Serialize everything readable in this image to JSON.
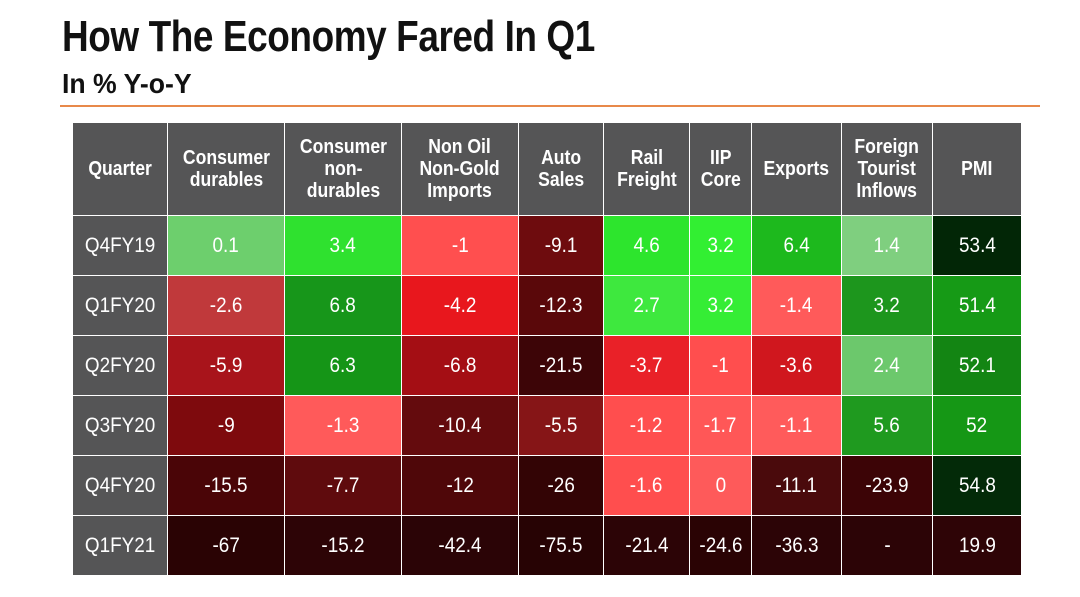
{
  "title": "How The Economy Fared In Q1",
  "subtitle": "In % Y-o-Y",
  "colors": {
    "header_bg": "#555556",
    "accent_rule": "#e8894a",
    "low": "#2b0304",
    "mid_red": "#e31d25",
    "light_red": "#ff5a5a",
    "light_green": "#7ad77a",
    "bright_green": "#25ec25",
    "dark_green": "#022a06"
  },
  "chart_data": {
    "type": "heatmap",
    "title": "How The Economy Fared In Q1",
    "subtitle": "In % Y-o-Y",
    "corner_label": "Quarter",
    "columns": [
      "Consumer\ndurables",
      "Consumer\nnon-\ndurables",
      "Non Oil\nNon-Gold\nImports",
      "Auto\nSales",
      "Rail\nFreight",
      "IIP\nCore",
      "Exports",
      "Foreign\nTourist\nInflows",
      "PMI"
    ],
    "rows": [
      "Q4FY19",
      "Q1FY20",
      "Q2FY20",
      "Q3FY20",
      "Q4FY20",
      "Q1FY21"
    ],
    "values": [
      [
        "0.1",
        "3.4",
        "-1",
        "-9.1",
        "4.6",
        "3.2",
        "6.4",
        "1.4",
        "53.4"
      ],
      [
        "-2.6",
        "6.8",
        "-4.2",
        "-12.3",
        "2.7",
        "3.2",
        "-1.4",
        "3.2",
        "51.4"
      ],
      [
        "-5.9",
        "6.3",
        "-6.8",
        "-21.5",
        "-3.7",
        "-1",
        "-3.6",
        "2.4",
        "52.1"
      ],
      [
        "-9",
        "-1.3",
        "-10.4",
        "-5.5",
        "-1.2",
        "-1.7",
        "-1.1",
        "5.6",
        "52"
      ],
      [
        "-15.5",
        "-7.7",
        "-12",
        "-26",
        "-1.6",
        "0",
        "-11.1",
        "-23.9",
        "54.8"
      ],
      [
        "-67",
        "-15.2",
        "-42.4",
        "-75.5",
        "-21.4",
        "-24.6",
        "-36.3",
        "-",
        "19.9"
      ]
    ],
    "cell_colors": [
      [
        "#6dcf6d",
        "#2fe12f",
        "#ff4f4f",
        "#6e0c0e",
        "#2de52d",
        "#32ef32",
        "#1db91d",
        "#7fcf7f",
        "#022606"
      ],
      [
        "#c0393b",
        "#17961a",
        "#e8171d",
        "#5a080a",
        "#3ee83e",
        "#35ed35",
        "#ff5a5a",
        "#1d961d",
        "#169a16"
      ],
      [
        "#a8141b",
        "#159517",
        "#a40e14",
        "#3d0507",
        "#e92128",
        "#ff4e4e",
        "#d0171e",
        "#6cc86c",
        "#138513"
      ],
      [
        "#7e0a0d",
        "#ff5a5a",
        "#640b0d",
        "#861517",
        "#ff4e4e",
        "#ff5757",
        "#ff5b5b",
        "#1f9a1f",
        "#159715"
      ],
      [
        "#4a0507",
        "#5f0b0d",
        "#4f0709",
        "#330405",
        "#ff4e4e",
        "#fe5a5a",
        "#4a0a0c",
        "#3c0406",
        "#032a08"
      ],
      [
        "#2a0304",
        "#2d0406",
        "#2b0406",
        "#270304",
        "#2c0406",
        "#2a0304",
        "#2c0406",
        "#2c0406",
        "#2e0406"
      ]
    ]
  }
}
